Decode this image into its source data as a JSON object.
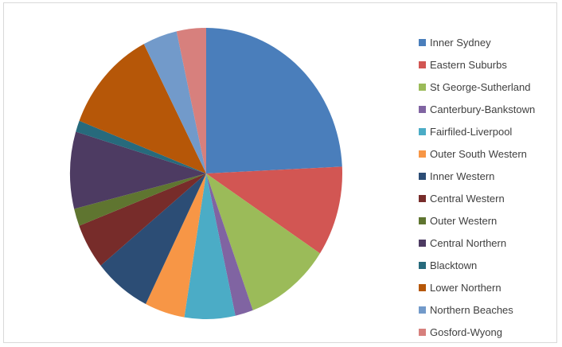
{
  "chart_data": {
    "type": "pie",
    "title": "",
    "legend_position": "right",
    "start_angle": "top, clockwise",
    "categories": [
      "Inner Sydney",
      "Eastern Suburbs",
      "St George-Sutherland",
      "Canterbury-Bankstown",
      "Fairfiled-Liverpool",
      "Outer South Western",
      "Inner Western",
      "Central Western",
      "Outer Western",
      "Central Northern",
      "Blacktown",
      "Lower Northern",
      "Northern Beaches",
      "Gosford-Wyong"
    ],
    "values": [
      25.0,
      10.3,
      10.5,
      2.2,
      6.2,
      4.9,
      7.0,
      5.2,
      2.0,
      8.8,
      1.3,
      11.9,
      4.2,
      3.6
    ],
    "unit": "percent (estimated)",
    "colors": [
      "#4a7ebb",
      "#d25653",
      "#9bbb59",
      "#8064a2",
      "#4bacc6",
      "#f79646",
      "#2c4d75",
      "#772c2a",
      "#5f7530",
      "#4d3b62",
      "#276a7c",
      "#b65708",
      "#729aca",
      "#d7807d"
    ]
  }
}
